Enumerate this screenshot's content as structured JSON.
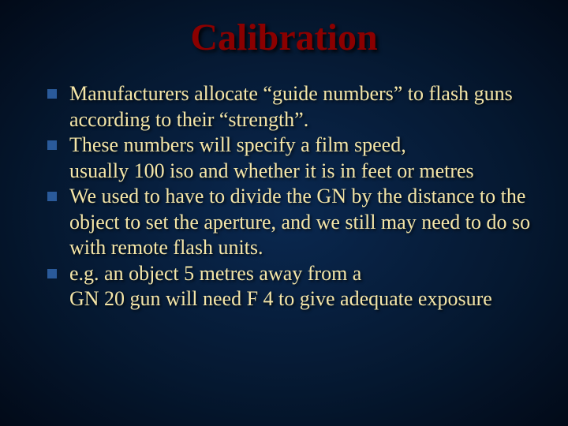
{
  "slide": {
    "title": "Calibration",
    "title_color": "#8b0000",
    "title_fontsize": 48,
    "body_color": "#f5e6a8",
    "body_fontsize": 26,
    "bullet_color": "#2a5a9a",
    "background": {
      "gradient_center": "#0a2850",
      "gradient_mid": "#051830",
      "gradient_edge": "#020a18"
    },
    "items": [
      {
        "bullet": true,
        "text": "Manufacturers allocate “guide numbers” to flash guns according to their “strength”."
      },
      {
        "bullet": true,
        "text": "These numbers will specify a film speed,"
      },
      {
        "bullet": false,
        "text": "usually 100 iso and whether it is in feet or metres"
      },
      {
        "bullet": true,
        "text": "We used to have to divide the GN by the distance to the object to set the aperture, and we still may need to do so with remote flash units."
      },
      {
        "bullet": true,
        "text": "e.g. an object 5 metres away from a"
      },
      {
        "bullet": false,
        "text": "GN 20 gun will need F 4 to give adequate exposure"
      }
    ]
  }
}
